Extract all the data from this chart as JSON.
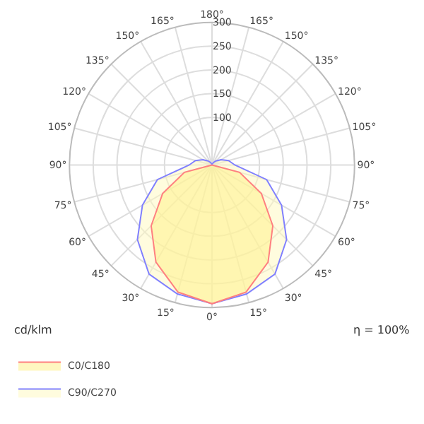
{
  "chart_data": {
    "type": "radar",
    "ylabel": "cd/klm",
    "annotations": [
      "η = 100%"
    ],
    "categories": [
      "180°",
      "165°",
      "150°",
      "135°",
      "120°",
      "105°",
      "90°",
      "75°",
      "60°",
      "45°",
      "30°",
      "15°",
      "0°",
      "15°",
      "30°",
      "45°",
      "60°",
      "75°",
      "90°",
      "105°",
      "120°",
      "135°",
      "150°",
      "165°"
    ],
    "series": [
      {
        "name": "C0/C180",
        "color": "#ff8080",
        "values": [
          0,
          0,
          0,
          0,
          0,
          0,
          0,
          60,
          120,
          181,
          236,
          277,
          292,
          277,
          236,
          181,
          120,
          60,
          0,
          0,
          0,
          0,
          0,
          0
        ]
      },
      {
        "name": "C90/C270",
        "color": "#8080ff",
        "values": [
          0,
          2,
          6,
          12,
          22,
          36,
          48,
          119,
          169,
          222,
          265,
          281,
          292,
          281,
          265,
          222,
          169,
          119,
          48,
          36,
          22,
          12,
          6,
          2
        ]
      }
    ],
    "ylim": [
      0,
      300
    ],
    "yticks": [
      100,
      150,
      200,
      250,
      300
    ],
    "grid": true,
    "legend": "bottom",
    "line_style": "solid",
    "marker": "none"
  }
}
